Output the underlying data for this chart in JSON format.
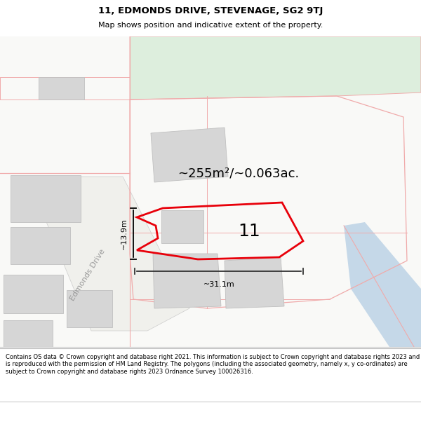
{
  "title": "11, EDMONDS DRIVE, STEVENAGE, SG2 9TJ",
  "subtitle": "Map shows position and indicative extent of the property.",
  "footer": "Contains OS data © Crown copyright and database right 2021. This information is subject to Crown copyright and database rights 2023 and is reproduced with the permission of HM Land Registry. The polygons (including the associated geometry, namely x, y co-ordinates) are subject to Crown copyright and database rights 2023 Ordnance Survey 100026316.",
  "area_label": "~255m²/~0.063ac.",
  "number_label": "11",
  "width_label": "~31.1m",
  "height_label": "~13.9m",
  "road_label": "Edmonds Drive",
  "map_bg": "#f9f9f7",
  "title_bg": "#ffffff",
  "footer_bg": "#ffffff",
  "building_fill": "#d6d6d6",
  "building_stroke": "#c0c0c0",
  "property_red": "#e8000a",
  "pink": "#f0aaaa",
  "blue_fill": "#c5d8e8",
  "green_fill": "#ddeedd",
  "title_fontsize": 9.5,
  "subtitle_fontsize": 8,
  "area_fontsize": 13,
  "number_fontsize": 18,
  "road_fontsize": 8,
  "measure_fontsize": 8,
  "footer_fontsize": 6.0
}
